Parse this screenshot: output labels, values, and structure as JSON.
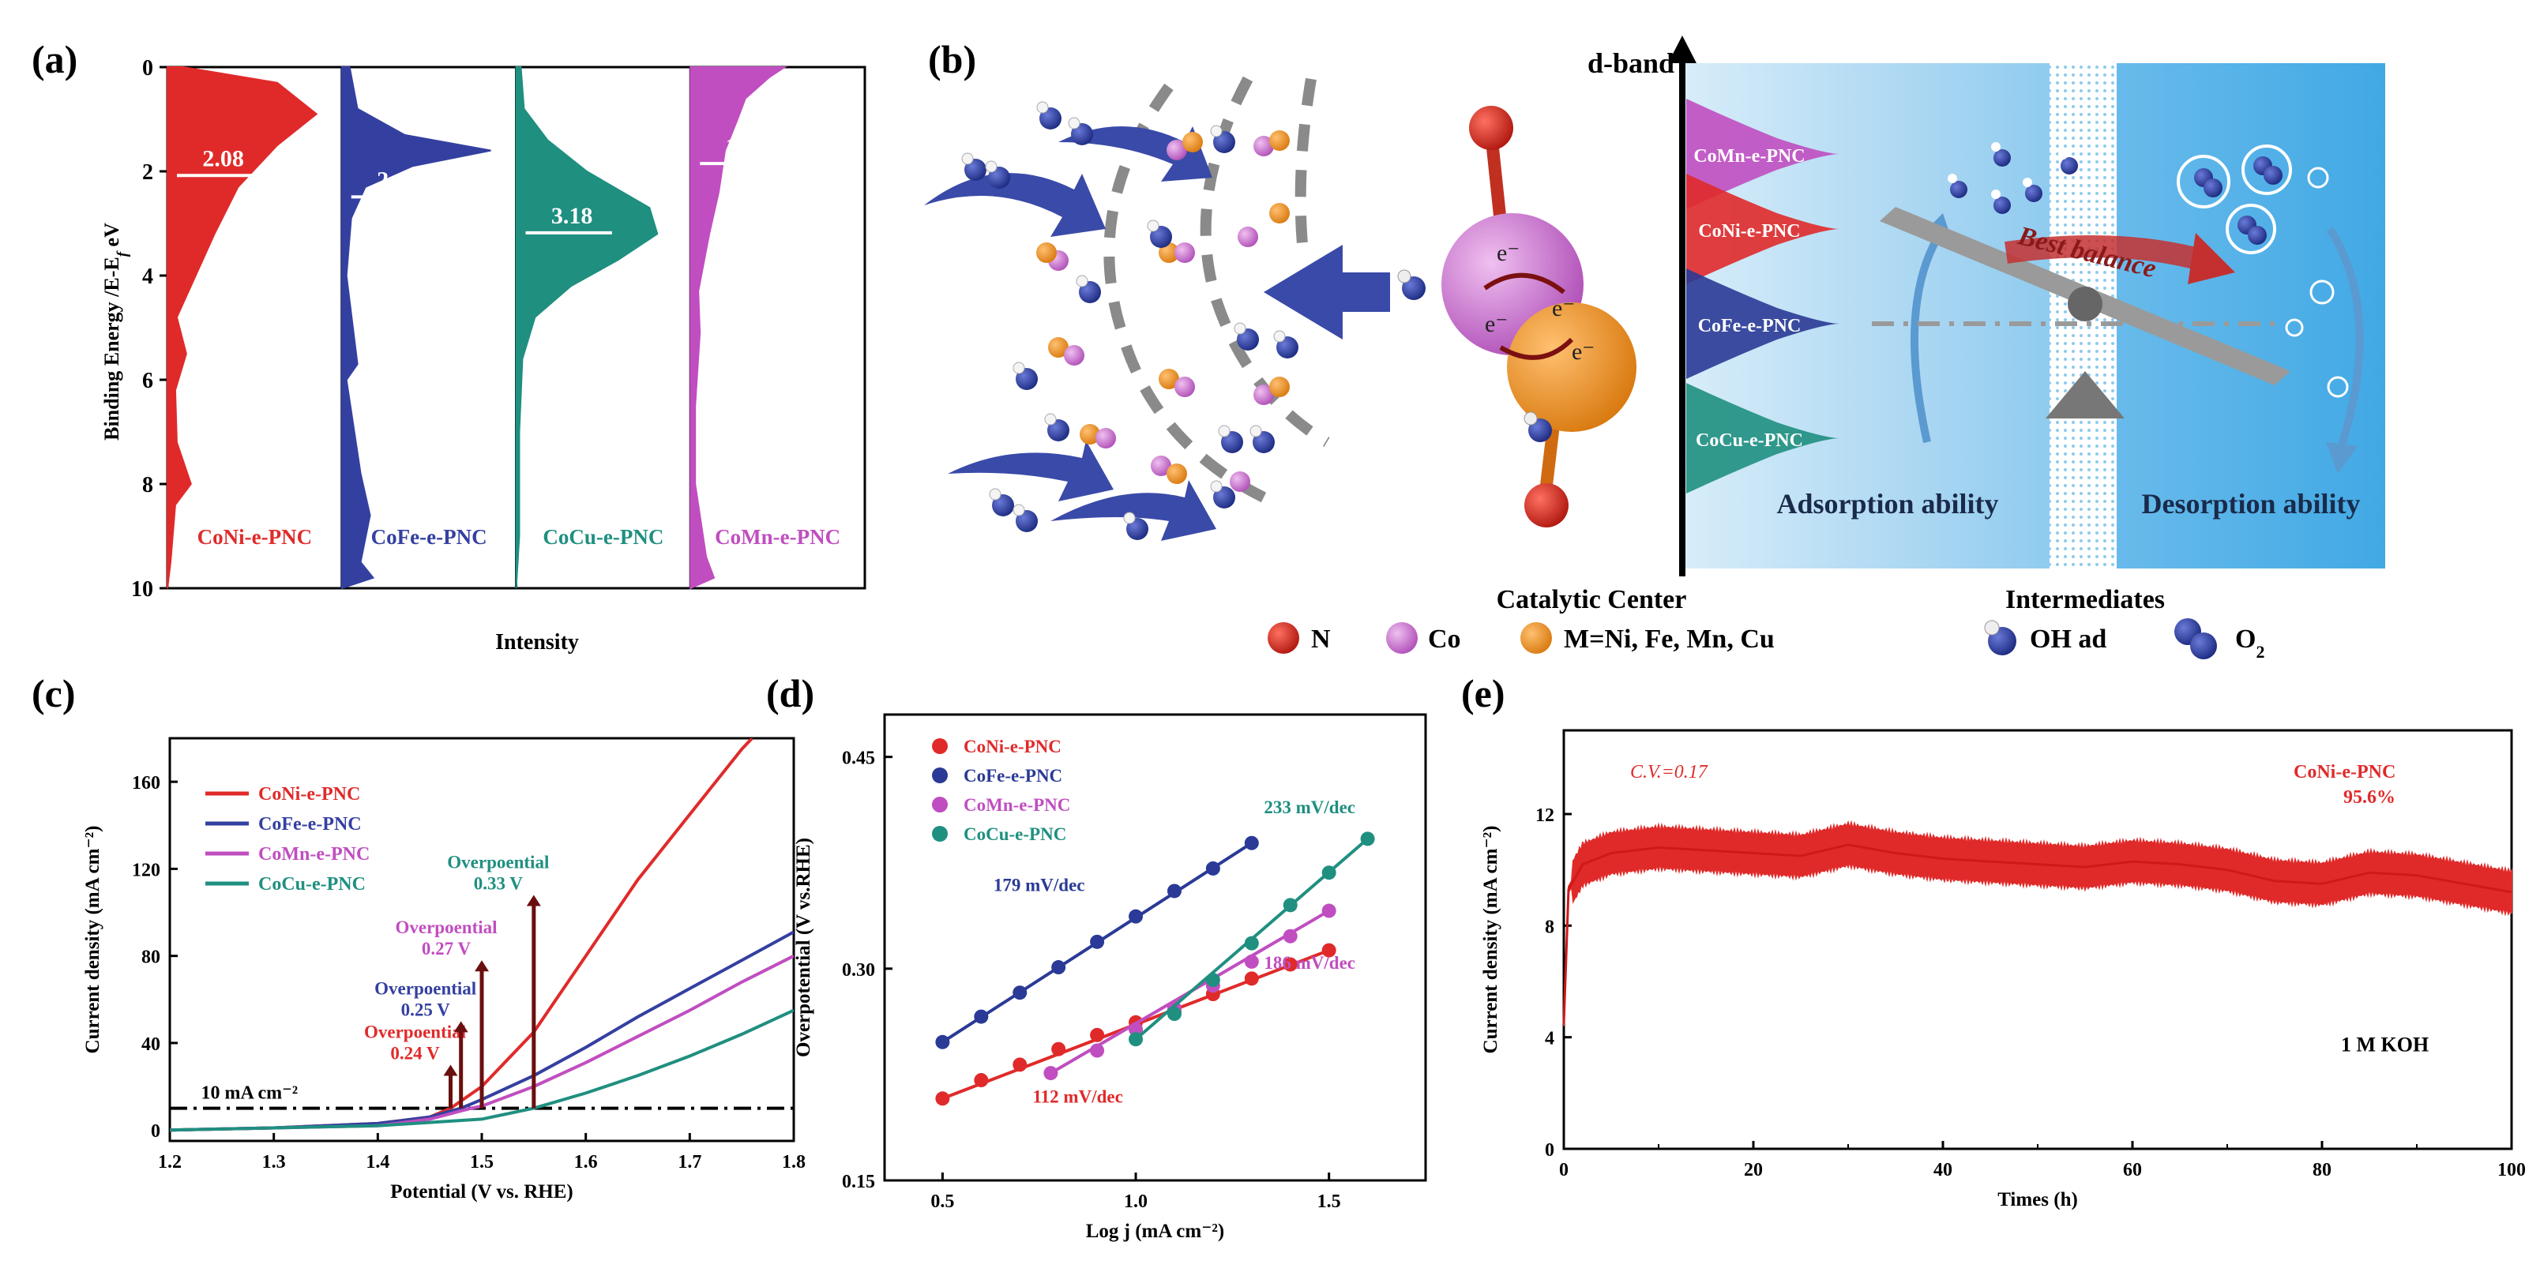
{
  "panel_labels": {
    "a": "(a)",
    "b": "(b)",
    "c": "(c)",
    "d": "(d)",
    "e": "(e)"
  },
  "colors": {
    "red": "#e02a2a",
    "blue": "#3440a0",
    "magenta": "#c04ec0",
    "teal": "#1f8f80",
    "darkred": "#7a1010",
    "navy": "#2a3a96"
  },
  "panel_a": {
    "ylabel": "Binding Energy /E-E",
    "ylabel_sub": "f",
    "ylabel_unit": " eV",
    "xlabel": "Intensity",
    "yticks": [
      "0",
      "2",
      "4",
      "6",
      "8",
      "10"
    ],
    "columns": [
      {
        "name": "CoNi-e-PNC",
        "center_value": "2.08",
        "color_key": "red"
      },
      {
        "name": "CoFe-e-PNC",
        "center_value": "2.49",
        "color_key": "blue"
      },
      {
        "name": "CoCu-e-PNC",
        "center_value": "3.18",
        "color_key": "teal"
      },
      {
        "name": "CoMn-e-PNC",
        "center_value": "1.85",
        "color_key": "magenta"
      }
    ]
  },
  "panel_b": {
    "dband": "d-band",
    "band_labels": [
      "CoMn-e-PNC",
      "CoNi-e-PNC",
      "CoFe-e-PNC",
      "CoCu-e-PNC"
    ],
    "best_balance": "Best balance",
    "adsorption": "Adsorption ability",
    "desorption": "Desorption ability",
    "catalytic_center": "Catalytic Center",
    "intermediates": "Intermediates",
    "electron": "e⁻",
    "legend": [
      {
        "key": "N",
        "label": "N"
      },
      {
        "key": "Co",
        "label": "Co"
      },
      {
        "key": "M",
        "label": "M=Ni, Fe, Mn, Cu"
      },
      {
        "key": "OH",
        "label": "OH ad"
      },
      {
        "key": "O2",
        "label": "O"
      }
    ],
    "o2_sub": "2"
  },
  "chart_data": [
    {
      "type": "line",
      "panel": "c",
      "xlabel": "Potential (V vs. RHE)",
      "ylabel": "Current density (mA cm⁻²)",
      "xlim": [
        1.2,
        1.8
      ],
      "ylim": [
        -5,
        180
      ],
      "xticks": [
        1.2,
        1.3,
        1.4,
        1.5,
        1.6,
        1.7,
        1.8
      ],
      "yticks": [
        0,
        40,
        80,
        120,
        160
      ],
      "reference_line": {
        "value": 10,
        "label": "10 mA cm⁻²"
      },
      "series": [
        {
          "name": "CoNi-e-PNC",
          "color_key": "red",
          "x": [
            1.2,
            1.3,
            1.4,
            1.45,
            1.47,
            1.5,
            1.55,
            1.6,
            1.65,
            1.7,
            1.75,
            1.76
          ],
          "y": [
            0,
            1,
            3,
            6,
            10,
            20,
            45,
            80,
            115,
            145,
            175,
            180
          ]
        },
        {
          "name": "CoFe-e-PNC",
          "color_key": "blue",
          "x": [
            1.2,
            1.3,
            1.4,
            1.45,
            1.48,
            1.5,
            1.55,
            1.6,
            1.65,
            1.7,
            1.75,
            1.8
          ],
          "y": [
            0,
            1,
            3,
            6,
            10,
            14,
            25,
            38,
            52,
            65,
            78,
            91
          ]
        },
        {
          "name": "CoMn-e-PNC",
          "color_key": "magenta",
          "x": [
            1.2,
            1.3,
            1.4,
            1.45,
            1.49,
            1.5,
            1.55,
            1.6,
            1.65,
            1.7,
            1.75,
            1.8
          ],
          "y": [
            0,
            1,
            2,
            5,
            10,
            11,
            20,
            31,
            43,
            55,
            68,
            80
          ]
        },
        {
          "name": "CoCu-e-PNC",
          "color_key": "teal",
          "x": [
            1.2,
            1.3,
            1.4,
            1.5,
            1.55,
            1.6,
            1.65,
            1.7,
            1.75,
            1.8
          ],
          "y": [
            0,
            1,
            2,
            5,
            10,
            17,
            25,
            34,
            44,
            55
          ]
        }
      ],
      "annotations": [
        {
          "line1": "Overpoential",
          "line2": "0.24 V",
          "color_key": "red",
          "x": 1.47,
          "y_top": 30
        },
        {
          "line1": "Overpoential",
          "line2": "0.25 V",
          "color_key": "blue",
          "x": 1.48,
          "y_top": 50
        },
        {
          "line1": "Overpoential",
          "line2": "0.27 V",
          "color_key": "magenta",
          "x": 1.5,
          "y_top": 78
        },
        {
          "line1": "Overpoential",
          "line2": "0.33 V",
          "color_key": "teal",
          "x": 1.55,
          "y_top": 108
        }
      ]
    },
    {
      "type": "scatter",
      "panel": "d",
      "xlabel": "Log j (mA cm⁻²)",
      "ylabel": "Overpotential (V vs.RHE)",
      "xlim": [
        0.35,
        1.75
      ],
      "ylim": [
        0.15,
        0.48
      ],
      "xticks": [
        0.5,
        1.0,
        1.5
      ],
      "yticks": [
        0.15,
        0.3,
        0.45
      ],
      "series": [
        {
          "name": "CoNi-e-PNC",
          "color_key": "red",
          "slope_label": "112 mV/dec",
          "x": [
            0.5,
            0.6,
            0.7,
            0.8,
            0.9,
            1.0,
            1.1,
            1.2,
            1.3,
            1.4,
            1.5
          ],
          "y": [
            0.208,
            0.221,
            0.232,
            0.243,
            0.253,
            0.262,
            0.27,
            0.282,
            0.293,
            0.303,
            0.313
          ]
        },
        {
          "name": "CoFe-e-PNC",
          "color_key": "navy",
          "slope_label": "179 mV/dec",
          "x": [
            0.5,
            0.6,
            0.7,
            0.8,
            0.9,
            1.0,
            1.1,
            1.2,
            1.3
          ],
          "y": [
            0.248,
            0.266,
            0.283,
            0.301,
            0.319,
            0.337,
            0.355,
            0.371,
            0.389
          ]
        },
        {
          "name": "CoMn-e-PNC",
          "color_key": "magenta",
          "slope_label": "186 mV/dec",
          "x": [
            0.78,
            0.9,
            1.0,
            1.1,
            1.2,
            1.3,
            1.4,
            1.5
          ],
          "y": [
            0.226,
            0.242,
            0.257,
            0.272,
            0.288,
            0.305,
            0.323,
            0.341
          ]
        },
        {
          "name": "CoCu-e-PNC",
          "color_key": "teal",
          "slope_label": "233 mV/dec",
          "x": [
            1.0,
            1.1,
            1.2,
            1.3,
            1.4,
            1.5,
            1.6
          ],
          "y": [
            0.25,
            0.268,
            0.292,
            0.318,
            0.345,
            0.368,
            0.392
          ]
        }
      ]
    },
    {
      "type": "line",
      "panel": "e",
      "xlabel": "Times (h)",
      "ylabel": "Current density (mA cm⁻²)",
      "xlim": [
        0,
        100
      ],
      "ylim": [
        0,
        15
      ],
      "xticks": [
        0,
        20,
        40,
        60,
        80,
        100
      ],
      "yticks": [
        0,
        4,
        8,
        12
      ],
      "annotations": {
        "cv": "C.V.=0.17",
        "name": "CoNi-e-PNC",
        "retention": "95.6%",
        "electrolyte": "1 M KOH"
      },
      "series": [
        {
          "name": "CoNi-e-PNC",
          "color_key": "red",
          "x": [
            0,
            0.5,
            2,
            5,
            10,
            15,
            20,
            25,
            30,
            35,
            40,
            45,
            50,
            55,
            60,
            65,
            70,
            75,
            80,
            85,
            90,
            95,
            100
          ],
          "y": [
            4.5,
            9.3,
            10.2,
            10.6,
            10.8,
            10.7,
            10.6,
            10.5,
            10.9,
            10.6,
            10.4,
            10.3,
            10.2,
            10.1,
            10.3,
            10.2,
            10.0,
            9.6,
            9.5,
            9.9,
            9.8,
            9.5,
            9.2
          ]
        }
      ]
    }
  ]
}
